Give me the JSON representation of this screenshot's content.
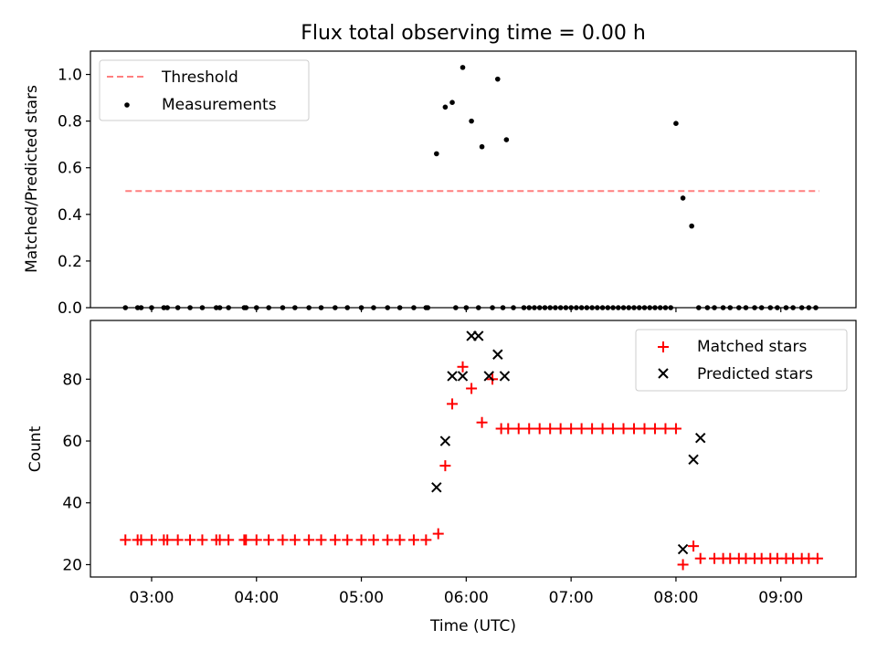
{
  "chart_data": [
    {
      "type": "scatter",
      "title": "Flux total observing time = 0.00 h",
      "xlabel": "",
      "ylabel": "Matched/Predicted stars",
      "xlim": [
        "02:25",
        "09:43"
      ],
      "ylim": [
        0,
        1.1
      ],
      "yticks": [
        0.0,
        0.2,
        0.4,
        0.6,
        0.8,
        1.0
      ],
      "ytick_labels": [
        "0.0",
        "0.2",
        "0.4",
        "0.6",
        "0.8",
        "1.0"
      ],
      "legend": {
        "position": "top-left",
        "entries": [
          "Threshold",
          "Measurements"
        ]
      },
      "series": [
        {
          "name": "Threshold",
          "kind": "line",
          "style": "dashed",
          "color": "#ff7f7f",
          "x": [
            "02:45",
            "09:22"
          ],
          "y": [
            0.5,
            0.5
          ]
        },
        {
          "name": "Measurements",
          "kind": "scatter",
          "color": "#000000",
          "x": [
            "02:45",
            "02:52",
            "02:54",
            "03:00",
            "03:07",
            "03:09",
            "03:15",
            "03:22",
            "03:29",
            "03:37",
            "03:39",
            "03:44",
            "03:53",
            "03:54",
            "04:00",
            "04:07",
            "04:15",
            "04:22",
            "04:30",
            "04:37",
            "04:45",
            "04:52",
            "05:00",
            "05:07",
            "05:15",
            "05:22",
            "05:30",
            "05:37",
            "05:38",
            "05:43",
            "05:48",
            "05:52",
            "05:54",
            "05:58",
            "06:00",
            "06:03",
            "06:07",
            "06:09",
            "06:15",
            "06:18",
            "06:21",
            "06:23",
            "06:27",
            "06:33",
            "06:36",
            "06:39",
            "06:42",
            "06:45",
            "06:48",
            "06:51",
            "06:54",
            "06:57",
            "07:00",
            "07:03",
            "07:06",
            "07:09",
            "07:12",
            "07:15",
            "07:18",
            "07:21",
            "07:24",
            "07:27",
            "07:30",
            "07:33",
            "07:36",
            "07:39",
            "07:42",
            "07:45",
            "07:48",
            "07:51",
            "07:54",
            "07:57",
            "08:00",
            "08:04",
            "08:09",
            "08:13",
            "08:18",
            "08:22",
            "08:27",
            "08:31",
            "08:36",
            "08:40",
            "08:45",
            "08:49",
            "08:54",
            "08:58",
            "09:03",
            "09:07",
            "09:12",
            "09:16",
            "09:20"
          ],
          "y": [
            0,
            0,
            0,
            0,
            0,
            0,
            0,
            0,
            0,
            0,
            0,
            0,
            0,
            0,
            0,
            0,
            0,
            0,
            0,
            0,
            0,
            0,
            0,
            0,
            0,
            0,
            0,
            0,
            0,
            0.66,
            0.86,
            0.88,
            0,
            1.03,
            0,
            0.8,
            0,
            0.69,
            0,
            0.98,
            0,
            0.72,
            0,
            0,
            0,
            0,
            0,
            0,
            0,
            0,
            0,
            0,
            0,
            0,
            0,
            0,
            0,
            0,
            0,
            0,
            0,
            0,
            0,
            0,
            0,
            0,
            0,
            0,
            0,
            0,
            0,
            0,
            0.79,
            0.47,
            0.35,
            0,
            0,
            0,
            0,
            0,
            0,
            0,
            0,
            0,
            0,
            0,
            0,
            0,
            0,
            0,
            0
          ]
        }
      ]
    },
    {
      "type": "scatter",
      "title": "",
      "xlabel": "Time (UTC)",
      "ylabel": "Count",
      "xlim": [
        "02:25",
        "09:43"
      ],
      "ylim": [
        16,
        99
      ],
      "yticks": [
        20,
        40,
        60,
        80
      ],
      "ytick_labels": [
        "20",
        "40",
        "60",
        "80"
      ],
      "xticks": [
        "03:00",
        "04:00",
        "05:00",
        "06:00",
        "07:00",
        "08:00",
        "09:00"
      ],
      "xtick_labels": [
        "03:00",
        "04:00",
        "05:00",
        "06:00",
        "07:00",
        "08:00",
        "09:00"
      ],
      "legend": {
        "position": "top-right",
        "entries": [
          "Matched stars",
          "Predicted stars"
        ]
      },
      "series": [
        {
          "name": "Matched stars",
          "marker": "plus",
          "color": "#ff0000",
          "x": [
            "02:45",
            "02:52",
            "02:54",
            "03:00",
            "03:07",
            "03:09",
            "03:15",
            "03:22",
            "03:29",
            "03:37",
            "03:39",
            "03:44",
            "03:53",
            "03:54",
            "04:00",
            "04:07",
            "04:15",
            "04:22",
            "04:30",
            "04:37",
            "04:45",
            "04:52",
            "05:00",
            "05:07",
            "05:15",
            "05:22",
            "05:30",
            "05:37",
            "05:44",
            "05:48",
            "05:52",
            "05:58",
            "06:03",
            "06:09",
            "06:15",
            "06:20",
            "06:24",
            "06:30",
            "06:36",
            "06:42",
            "06:48",
            "06:54",
            "07:00",
            "07:06",
            "07:12",
            "07:18",
            "07:24",
            "07:30",
            "07:36",
            "07:42",
            "07:48",
            "07:54",
            "08:00",
            "08:04",
            "08:10",
            "08:14",
            "08:22",
            "08:27",
            "08:31",
            "08:36",
            "08:40",
            "08:45",
            "08:49",
            "08:54",
            "08:58",
            "09:03",
            "09:07",
            "09:12",
            "09:16",
            "09:21"
          ],
          "y": [
            28,
            28,
            28,
            28,
            28,
            28,
            28,
            28,
            28,
            28,
            28,
            28,
            28,
            28,
            28,
            28,
            28,
            28,
            28,
            28,
            28,
            28,
            28,
            28,
            28,
            28,
            28,
            28,
            30,
            52,
            72,
            84,
            77,
            66,
            80,
            64,
            64,
            64,
            64,
            64,
            64,
            64,
            64,
            64,
            64,
            64,
            64,
            64,
            64,
            64,
            64,
            64,
            64,
            20,
            26,
            22,
            22,
            22,
            22,
            22,
            22,
            22,
            22,
            22,
            22,
            22,
            22,
            22,
            22,
            22
          ]
        },
        {
          "name": "Predicted stars",
          "marker": "x",
          "color": "#000000",
          "x": [
            "05:43",
            "05:48",
            "05:52",
            "05:58",
            "06:03",
            "06:07",
            "06:13",
            "06:18",
            "06:22",
            "08:04",
            "08:10",
            "08:14"
          ],
          "y": [
            45,
            60,
            81,
            81,
            94,
            94,
            81,
            88,
            81,
            25,
            54,
            61
          ]
        }
      ]
    }
  ]
}
